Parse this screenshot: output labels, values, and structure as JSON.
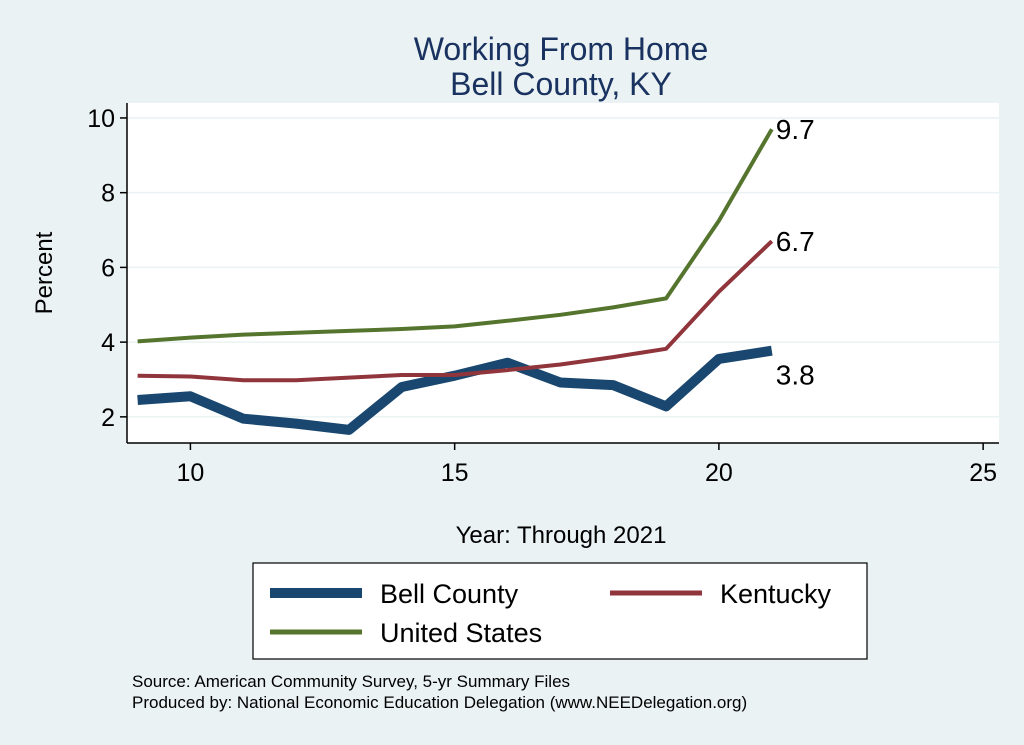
{
  "chart_data": {
    "type": "line",
    "title": [
      "Working From Home",
      "Bell County, KY"
    ],
    "xlabel": "Year: Through 2021",
    "ylabel": "Percent",
    "xlim": [
      8.8,
      25.3
    ],
    "ylim": [
      1.3,
      10.4
    ],
    "xticks": [
      10,
      15,
      20,
      25
    ],
    "yticks": [
      2,
      4,
      6,
      8,
      10
    ],
    "grid": true,
    "legend_placement": "bottom",
    "x": [
      9,
      10,
      11,
      12,
      13,
      14,
      15,
      16,
      17,
      18,
      19,
      20,
      21
    ],
    "series": [
      {
        "name": "Bell County",
        "color": "#1a476f",
        "width": 10,
        "values": [
          2.45,
          2.55,
          1.95,
          1.82,
          1.65,
          2.8,
          3.1,
          3.45,
          2.92,
          2.85,
          2.28,
          3.55,
          3.77
        ],
        "end_label": "3.8"
      },
      {
        "name": "Kentucky",
        "color": "#90353b",
        "width": 4,
        "values": [
          3.1,
          3.08,
          2.98,
          2.98,
          3.05,
          3.12,
          3.12,
          3.25,
          3.4,
          3.6,
          3.82,
          5.35,
          6.7
        ],
        "end_label": "6.7"
      },
      {
        "name": "United States",
        "color": "#55752f",
        "width": 4,
        "values": [
          4.02,
          4.12,
          4.2,
          4.25,
          4.3,
          4.35,
          4.42,
          4.57,
          4.73,
          4.93,
          5.17,
          7.25,
          9.7
        ],
        "end_label": "9.7"
      }
    ],
    "notes": [
      "Source: American Community Survey, 5-yr Summary Files",
      "Produced by: National Economic Education Delegation (www.NEEDelegation.org)"
    ]
  }
}
